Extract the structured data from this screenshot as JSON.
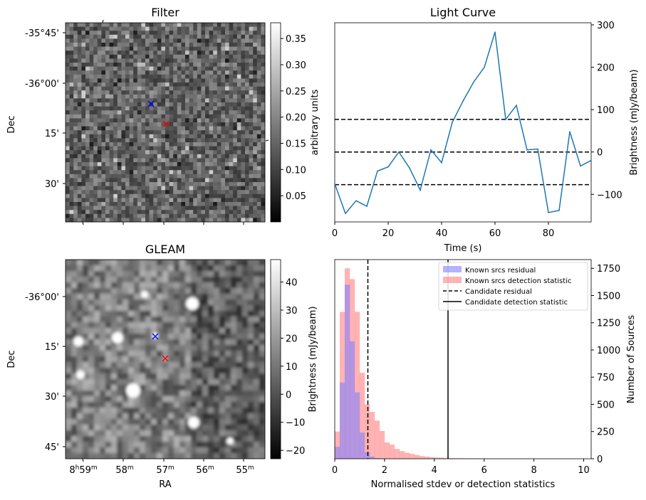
{
  "colors": {
    "line": "#1f77b4",
    "known_residual": "#8080ff",
    "known_detection": "#ff8080",
    "overlap": "#c06fa8",
    "filter_marker_blue": "#0000ff",
    "filter_marker_red": "#ff0000"
  },
  "chart_data": [
    {
      "type": "heatmap",
      "title": "Filter",
      "ylabel": "Dec",
      "dec_tick_labels": [
        "-35°45'",
        "-36°00'",
        "15'",
        "30'"
      ],
      "colorbar": {
        "label": "arbitrary units",
        "ticks": [
          0.05,
          0.1,
          0.15,
          0.2,
          0.25,
          0.3,
          0.35
        ],
        "tick_labels": [
          "0.05",
          "0.10",
          "0.15",
          "0.20",
          "0.25",
          "0.30",
          "0.35"
        ],
        "range": [
          0.0,
          0.38
        ]
      },
      "markers": [
        {
          "symbol": "x",
          "color": "blue"
        },
        {
          "symbol": "x",
          "color": "red"
        }
      ]
    },
    {
      "type": "line",
      "title": "Light Curve",
      "xlabel": "Time (s)",
      "ylabel": "Brightness (mJy/beam)",
      "xlim": [
        0,
        96
      ],
      "ylim": [
        -165,
        305
      ],
      "x_ticks": [
        0,
        20,
        40,
        60,
        80
      ],
      "x_tick_labels": [
        "0",
        "20",
        "40",
        "60",
        "80"
      ],
      "y_ticks": [
        -100,
        0,
        100,
        200,
        300
      ],
      "y_tick_labels": [
        "−100",
        "0",
        "100",
        "200",
        "300"
      ],
      "series": [
        {
          "name": "light curve",
          "x": [
            0,
            4,
            8,
            12,
            16,
            20,
            24,
            28,
            32,
            36,
            40,
            44,
            48,
            52,
            56,
            60,
            64,
            68,
            72,
            76,
            80,
            84,
            88,
            92,
            96
          ],
          "y": [
            -75,
            -145,
            -115,
            -128,
            -45,
            -35,
            0,
            -38,
            -90,
            5,
            -25,
            70,
            120,
            165,
            200,
            283,
            77,
            110,
            5,
            7,
            -143,
            -138,
            48,
            -33,
            -20
          ]
        }
      ],
      "hlines": [
        {
          "y": 77,
          "style": "dashed"
        },
        {
          "y": 0,
          "style": "dashed"
        },
        {
          "y": -77,
          "style": "dashed"
        }
      ]
    },
    {
      "type": "heatmap",
      "title": "GLEAM",
      "xlabel": "RA",
      "ylabel": "Dec",
      "ra_tick_labels": [
        {
          "hours": "8",
          "minutes": "59",
          "text": "8h59m"
        },
        {
          "minutes": "58",
          "text": "58m"
        },
        {
          "minutes": "57",
          "text": "57m"
        },
        {
          "minutes": "56",
          "text": "56m"
        },
        {
          "minutes": "55",
          "text": "55m"
        }
      ],
      "dec_tick_labels": [
        "-36°00'",
        "15'",
        "30'",
        "45'"
      ],
      "colorbar": {
        "label": "Brightness (mJy/beam)",
        "ticks": [
          -20,
          -10,
          0,
          10,
          20,
          30,
          40
        ],
        "tick_labels": [
          "−20",
          "−10",
          "0",
          "10",
          "20",
          "30",
          "40"
        ],
        "range": [
          -23,
          48
        ]
      },
      "markers": [
        {
          "symbol": "x",
          "color": "blue"
        },
        {
          "symbol": "x",
          "color": "red"
        }
      ]
    },
    {
      "type": "bar",
      "xlabel": "Normalised stdev or detection statistics",
      "ylabel": "Number of Sources",
      "xlim": [
        0,
        10.3
      ],
      "ylim": [
        0,
        1830
      ],
      "x_ticks": [
        0,
        2,
        4,
        6,
        8,
        10
      ],
      "x_tick_labels": [
        "0",
        "2",
        "4",
        "6",
        "8",
        "10"
      ],
      "y_ticks": [
        0,
        250,
        500,
        750,
        1000,
        1250,
        1500,
        1750
      ],
      "y_tick_labels": [
        "0",
        "250",
        "500",
        "750",
        "1000",
        "1250",
        "1500",
        "1750"
      ],
      "bin_width": 0.2,
      "series": [
        {
          "name": "Known srcs residual",
          "values": [
            110,
            700,
            1600,
            1080,
            610,
            240,
            60,
            20,
            6,
            3,
            1,
            0,
            0,
            0,
            0,
            0,
            0,
            0,
            0,
            0,
            0,
            0,
            0,
            0,
            0,
            0,
            0,
            0,
            0,
            0,
            0,
            0,
            0,
            0,
            0,
            0,
            0,
            0,
            0,
            0,
            0,
            0,
            0,
            0,
            0,
            0,
            0,
            0,
            0,
            0
          ]
        },
        {
          "name": "Known srcs detection statistic",
          "values": [
            250,
            1350,
            1750,
            1650,
            1350,
            790,
            500,
            430,
            350,
            255,
            150,
            130,
            90,
            70,
            55,
            45,
            35,
            25,
            20,
            15,
            12,
            10,
            8,
            6,
            5,
            5,
            4,
            4,
            3,
            3,
            3,
            2,
            2,
            2,
            2,
            2,
            1,
            1,
            1,
            1,
            1,
            1,
            1,
            1,
            1,
            1,
            1,
            1,
            1,
            0
          ]
        }
      ],
      "vlines": [
        {
          "name": "Candidate residual",
          "x": 1.33,
          "style": "dashed"
        },
        {
          "name": "Candidate detection statistic",
          "x": 4.55,
          "style": "solid"
        }
      ],
      "legend_location": "top-right",
      "left_axis_label": "Brightness (mJy/beam)"
    }
  ]
}
